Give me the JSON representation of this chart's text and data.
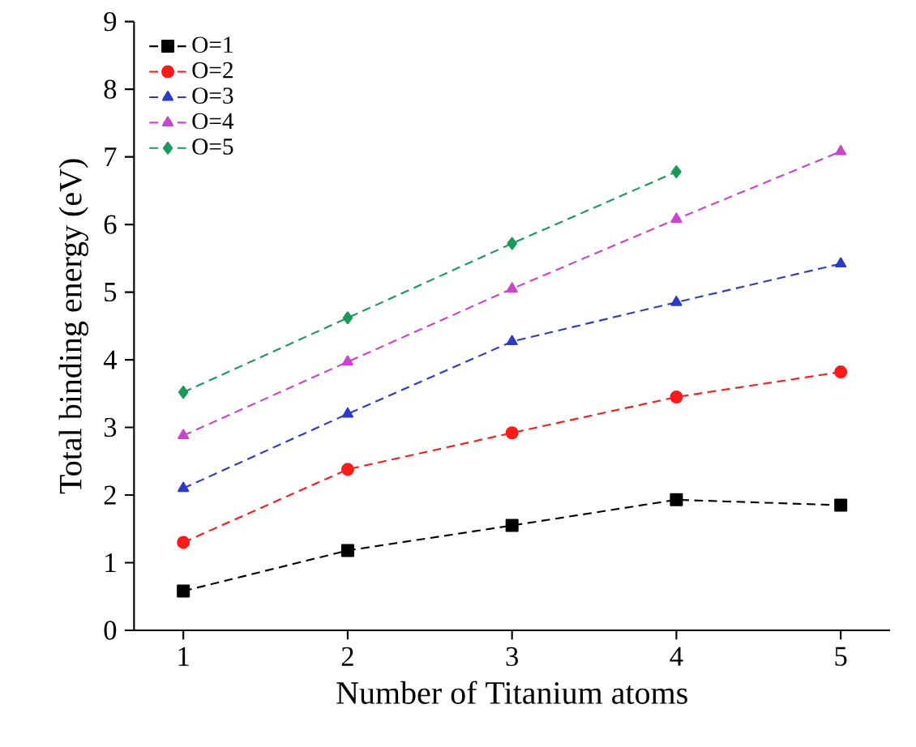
{
  "chart_data": {
    "type": "line",
    "xlabel": "Number of Titanium atoms",
    "ylabel": "Total binding energy (eV)",
    "x": [
      1,
      2,
      3,
      4,
      5
    ],
    "xlim": [
      0.7,
      5.3
    ],
    "xticks": [
      1,
      2,
      3,
      4,
      5
    ],
    "ylim": [
      0,
      9
    ],
    "yticks": [
      0,
      1,
      2,
      3,
      4,
      5,
      6,
      7,
      8,
      9
    ],
    "legend": "top left",
    "line_style": "dashed",
    "grid": false,
    "series": [
      {
        "name": "O=1",
        "color": "#000000",
        "marker": "square",
        "values": [
          0.58,
          1.18,
          1.55,
          1.93,
          1.85
        ]
      },
      {
        "name": "O=2",
        "color": "#ff1a1a",
        "marker": "circle",
        "values": [
          1.3,
          2.38,
          2.92,
          3.45,
          3.82
        ]
      },
      {
        "name": "O=3",
        "color": "#2b3bc8",
        "marker": "triangle",
        "values": [
          2.1,
          3.2,
          4.27,
          4.85,
          5.42
        ]
      },
      {
        "name": "O=4",
        "color": "#cc44cc",
        "marker": "triangle down",
        "values": [
          2.88,
          3.97,
          5.05,
          6.08,
          7.08
        ]
      },
      {
        "name": "O=5",
        "color": "#1a9a5a",
        "marker": "diamond",
        "values": [
          3.52,
          4.62,
          5.72,
          6.78,
          null
        ]
      }
    ]
  }
}
